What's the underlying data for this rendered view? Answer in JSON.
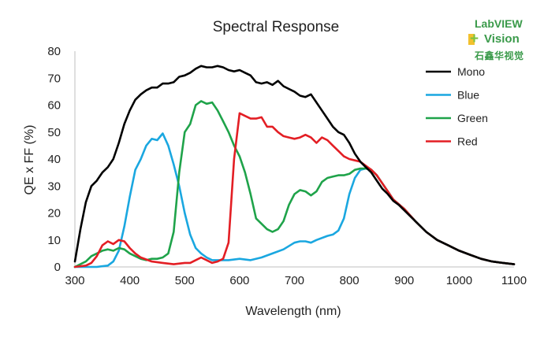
{
  "chart_data": {
    "type": "line",
    "title": "Spectral Response",
    "xlabel": "Wavelength (nm)",
    "ylabel": "QE x FF (%)",
    "xlim": [
      300,
      1100
    ],
    "ylim": [
      0,
      80
    ],
    "xticks": [
      "300",
      "400",
      "500",
      "600",
      "700",
      "800",
      "900",
      "1000",
      "1100"
    ],
    "yticks": [
      "0",
      "10",
      "20",
      "30",
      "40",
      "50",
      "60",
      "70",
      "80"
    ],
    "grid": false,
    "legend_position": "top-right",
    "series": [
      {
        "name": "Mono",
        "color": "#000000",
        "points": [
          [
            300,
            2
          ],
          [
            310,
            14
          ],
          [
            320,
            24
          ],
          [
            330,
            30
          ],
          [
            340,
            32
          ],
          [
            350,
            35
          ],
          [
            360,
            37
          ],
          [
            370,
            40
          ],
          [
            380,
            46
          ],
          [
            390,
            53
          ],
          [
            400,
            58
          ],
          [
            410,
            62
          ],
          [
            420,
            64
          ],
          [
            430,
            65.5
          ],
          [
            440,
            66.5
          ],
          [
            450,
            66.5
          ],
          [
            460,
            68
          ],
          [
            470,
            68
          ],
          [
            480,
            68.5
          ],
          [
            490,
            70.5
          ],
          [
            500,
            71
          ],
          [
            510,
            72
          ],
          [
            520,
            73.5
          ],
          [
            530,
            74.5
          ],
          [
            540,
            74
          ],
          [
            550,
            74
          ],
          [
            560,
            74.5
          ],
          [
            570,
            74
          ],
          [
            580,
            73
          ],
          [
            590,
            72.5
          ],
          [
            600,
            73
          ],
          [
            610,
            72
          ],
          [
            620,
            71
          ],
          [
            630,
            68.5
          ],
          [
            640,
            68
          ],
          [
            650,
            68.5
          ],
          [
            660,
            67.5
          ],
          [
            670,
            69
          ],
          [
            680,
            67
          ],
          [
            690,
            66
          ],
          [
            700,
            65
          ],
          [
            710,
            63.5
          ],
          [
            720,
            63
          ],
          [
            730,
            64
          ],
          [
            740,
            61
          ],
          [
            750,
            58
          ],
          [
            760,
            55
          ],
          [
            770,
            52
          ],
          [
            780,
            50
          ],
          [
            790,
            49
          ],
          [
            800,
            46
          ],
          [
            810,
            42
          ],
          [
            820,
            39
          ],
          [
            830,
            37
          ],
          [
            840,
            35
          ],
          [
            850,
            32
          ],
          [
            860,
            29
          ],
          [
            870,
            27
          ],
          [
            880,
            24.5
          ],
          [
            890,
            23
          ],
          [
            900,
            21
          ],
          [
            920,
            17
          ],
          [
            940,
            13
          ],
          [
            960,
            10
          ],
          [
            980,
            8
          ],
          [
            1000,
            6
          ],
          [
            1020,
            4.5
          ],
          [
            1040,
            3
          ],
          [
            1060,
            2
          ],
          [
            1080,
            1.5
          ],
          [
            1100,
            1
          ]
        ]
      },
      {
        "name": "Blue",
        "color": "#1aa7e0",
        "points": [
          [
            300,
            0
          ],
          [
            340,
            0
          ],
          [
            360,
            0.5
          ],
          [
            370,
            2
          ],
          [
            380,
            6
          ],
          [
            390,
            15
          ],
          [
            400,
            26
          ],
          [
            410,
            36
          ],
          [
            420,
            40
          ],
          [
            430,
            45
          ],
          [
            440,
            47.5
          ],
          [
            450,
            47
          ],
          [
            460,
            49.5
          ],
          [
            470,
            45
          ],
          [
            480,
            38
          ],
          [
            490,
            30
          ],
          [
            500,
            20
          ],
          [
            510,
            12
          ],
          [
            520,
            7
          ],
          [
            530,
            5
          ],
          [
            540,
            3.5
          ],
          [
            550,
            2.5
          ],
          [
            560,
            2.5
          ],
          [
            580,
            2.5
          ],
          [
            600,
            3
          ],
          [
            620,
            2.5
          ],
          [
            640,
            3.5
          ],
          [
            660,
            5
          ],
          [
            680,
            6.5
          ],
          [
            700,
            9
          ],
          [
            710,
            9.5
          ],
          [
            720,
            9.5
          ],
          [
            730,
            9
          ],
          [
            740,
            10
          ],
          [
            760,
            11.5
          ],
          [
            770,
            12
          ],
          [
            780,
            13.5
          ],
          [
            790,
            18
          ],
          [
            800,
            27
          ],
          [
            810,
            33
          ],
          [
            820,
            36
          ],
          [
            830,
            36.5
          ],
          [
            840,
            36
          ],
          [
            850,
            34
          ],
          [
            860,
            31
          ],
          [
            870,
            28
          ],
          [
            880,
            25
          ],
          [
            900,
            21.5
          ],
          [
            920,
            17
          ],
          [
            940,
            13
          ],
          [
            960,
            10
          ],
          [
            980,
            8
          ],
          [
            1000,
            6
          ],
          [
            1020,
            4.5
          ],
          [
            1040,
            3
          ],
          [
            1060,
            2
          ],
          [
            1080,
            1.5
          ],
          [
            1100,
            1
          ]
        ]
      },
      {
        "name": "Green",
        "color": "#1fa34a",
        "points": [
          [
            300,
            0
          ],
          [
            320,
            2
          ],
          [
            330,
            4
          ],
          [
            340,
            5
          ],
          [
            350,
            6
          ],
          [
            360,
            6.5
          ],
          [
            370,
            6
          ],
          [
            380,
            7
          ],
          [
            390,
            6.5
          ],
          [
            400,
            5
          ],
          [
            410,
            4
          ],
          [
            420,
            3
          ],
          [
            430,
            2.5
          ],
          [
            440,
            3
          ],
          [
            450,
            3
          ],
          [
            460,
            3.5
          ],
          [
            470,
            5
          ],
          [
            480,
            13
          ],
          [
            490,
            35
          ],
          [
            500,
            50
          ],
          [
            510,
            53
          ],
          [
            520,
            60
          ],
          [
            530,
            61.5
          ],
          [
            540,
            60.5
          ],
          [
            550,
            61
          ],
          [
            560,
            58
          ],
          [
            570,
            54
          ],
          [
            580,
            50
          ],
          [
            590,
            45
          ],
          [
            600,
            41
          ],
          [
            610,
            35
          ],
          [
            620,
            27
          ],
          [
            630,
            18
          ],
          [
            640,
            16
          ],
          [
            650,
            14
          ],
          [
            660,
            13
          ],
          [
            670,
            14
          ],
          [
            680,
            17
          ],
          [
            690,
            23
          ],
          [
            700,
            27
          ],
          [
            710,
            28.5
          ],
          [
            720,
            28
          ],
          [
            730,
            26.5
          ],
          [
            740,
            28
          ],
          [
            750,
            31.5
          ],
          [
            760,
            33
          ],
          [
            770,
            33.5
          ],
          [
            780,
            34
          ],
          [
            790,
            34
          ],
          [
            800,
            34.5
          ],
          [
            810,
            36
          ],
          [
            820,
            36.5
          ],
          [
            830,
            36.5
          ],
          [
            840,
            36
          ],
          [
            850,
            34
          ],
          [
            860,
            31
          ],
          [
            870,
            28
          ],
          [
            880,
            25
          ],
          [
            900,
            21.5
          ],
          [
            920,
            17
          ],
          [
            940,
            13
          ],
          [
            960,
            10
          ],
          [
            980,
            8
          ],
          [
            1000,
            6
          ],
          [
            1020,
            4.5
          ],
          [
            1040,
            3
          ],
          [
            1060,
            2
          ],
          [
            1080,
            1.5
          ],
          [
            1100,
            1
          ]
        ]
      },
      {
        "name": "Red",
        "color": "#e31e24",
        "points": [
          [
            300,
            0
          ],
          [
            320,
            0.5
          ],
          [
            330,
            1.5
          ],
          [
            340,
            4
          ],
          [
            350,
            8
          ],
          [
            360,
            9.5
          ],
          [
            370,
            8.5
          ],
          [
            380,
            10
          ],
          [
            390,
            9.5
          ],
          [
            400,
            7
          ],
          [
            410,
            5
          ],
          [
            420,
            3.5
          ],
          [
            440,
            2
          ],
          [
            460,
            1.5
          ],
          [
            480,
            1
          ],
          [
            500,
            1.5
          ],
          [
            510,
            1.5
          ],
          [
            520,
            2.5
          ],
          [
            530,
            3.5
          ],
          [
            540,
            2.5
          ],
          [
            550,
            1.5
          ],
          [
            560,
            2
          ],
          [
            570,
            3
          ],
          [
            580,
            9
          ],
          [
            590,
            40
          ],
          [
            600,
            57
          ],
          [
            610,
            56
          ],
          [
            620,
            55
          ],
          [
            630,
            55
          ],
          [
            640,
            55.5
          ],
          [
            650,
            52
          ],
          [
            660,
            52
          ],
          [
            670,
            50
          ],
          [
            680,
            48.5
          ],
          [
            690,
            48
          ],
          [
            700,
            47.5
          ],
          [
            710,
            48
          ],
          [
            720,
            49
          ],
          [
            730,
            48
          ],
          [
            740,
            46
          ],
          [
            750,
            48
          ],
          [
            760,
            47
          ],
          [
            770,
            45
          ],
          [
            780,
            43
          ],
          [
            790,
            41
          ],
          [
            800,
            40
          ],
          [
            810,
            39.5
          ],
          [
            820,
            39
          ],
          [
            830,
            37.5
          ],
          [
            840,
            36
          ],
          [
            850,
            34
          ],
          [
            860,
            31
          ],
          [
            870,
            28
          ],
          [
            880,
            25
          ],
          [
            900,
            21.5
          ],
          [
            920,
            17
          ],
          [
            940,
            13
          ],
          [
            960,
            10
          ],
          [
            980,
            8
          ],
          [
            1000,
            6
          ],
          [
            1020,
            4.5
          ],
          [
            1040,
            3
          ],
          [
            1060,
            2
          ],
          [
            1080,
            1.5
          ],
          [
            1100,
            1
          ]
        ]
      }
    ]
  },
  "watermark": {
    "line1": "LabVIEW",
    "plus": "+",
    "line2": "Vision",
    "line3": "石鑫华视觉"
  }
}
